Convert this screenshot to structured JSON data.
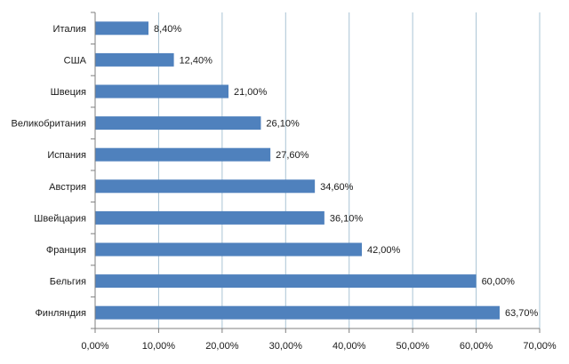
{
  "chart_data": {
    "type": "bar",
    "orientation": "horizontal",
    "categories": [
      "Италия",
      "США",
      "Швеция",
      "Великобритания",
      "Испания",
      "Австрия",
      "Швейцария",
      "Франция",
      "Бельгия",
      "Финляндия"
    ],
    "values": [
      8.4,
      12.4,
      21.0,
      26.1,
      27.6,
      34.6,
      36.1,
      42.0,
      60.0,
      63.7
    ],
    "value_labels": [
      "8,40%",
      "12,40%",
      "21,00%",
      "26,10%",
      "27,60%",
      "34,60%",
      "36,10%",
      "42,00%",
      "60,00%",
      "63,70%"
    ],
    "xlim": [
      0,
      70
    ],
    "x_ticks": [
      0,
      10,
      20,
      30,
      40,
      50,
      60,
      70
    ],
    "x_tick_labels": [
      "0,00%",
      "10,00%",
      "20,00%",
      "30,00%",
      "40,00%",
      "50,00%",
      "60,00%",
      "70,00%"
    ],
    "grid": "vertical",
    "legend": "none",
    "bar_color": "#4f81bd",
    "grid_color": "#a9c4d4",
    "axis_color": "#7f7f7f"
  }
}
